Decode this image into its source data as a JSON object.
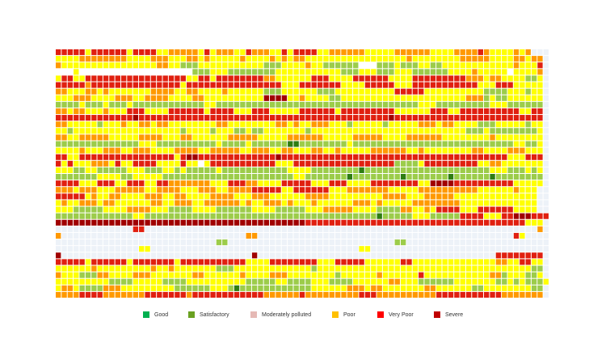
{
  "colors": {
    "good": "#00b050",
    "satisfactory": "#6aa121",
    "moderate": "#e5b9b5",
    "poor": "#ffc000",
    "very_poor": "#ff0000",
    "severe": "#c00000",
    "empty": "#eaf1f8"
  },
  "legend": [
    {
      "key": "good",
      "label": "Good",
      "color": "#00b050"
    },
    {
      "key": "satisfactory",
      "label": "Satisfactory",
      "color": "#6aa121"
    },
    {
      "key": "moderate",
      "label": "Moderately polluted",
      "color": "#e5b9b5"
    },
    {
      "key": "poor",
      "label": "Poor",
      "color": "#ffc000"
    },
    {
      "key": "very_poor",
      "label": "Very Poor",
      "color": "#ff0000"
    },
    {
      "key": "severe",
      "label": "Severe",
      "color": "#c00000"
    }
  ],
  "chart_data": {
    "type": "heatmap",
    "legend_position": "bottom",
    "palette": {
      "G": "#2e7d12",
      "S": "#9ccc4a",
      "Y": "#ffff00",
      "O": "#ff9900",
      "R": "#e02010",
      "D": "#a00000",
      "W": "#ffffff",
      "E": "#edf2f8"
    },
    "rows": [
      "RRRRRYRRRRRRYRRRRYYOOOOOYRYOOOYYROOOYYRYRRRRYYOOOOOOYYYYYOOOOOOYYYYOOOOROYYYYOYO",
      "YYYYOOOOOOOOYYYYOOOYYYOOYOYYYYYOYYYYOYOYOOYYYYYYYYYYYYYYYYYOYYYYYYYYOOOOOYYYYOOYOO",
      "OYYYYYYYYYYYYYYYYOOYYSSSYYYYYYYYYYYSSSYYYYOYYSSSSSSWWWSSSYSSSYYSSYYYYYYYYYYYYOYYYR",
      "WWWYWWWWWWWWWWWWWWWWWWWSSSYYYSSSSSSSSYYYYYYYYYYYSSSYYYSSSYYYSSSSSSYYYYOYYYYYWYYYYO",
      "YRRYYRRRRRRRRRRRRRRRRRYYRRYRRRRRRRROOYYYYYYRRRYYYYRRRRRRYYYYRRRRRRRRROOOYOOYYYYSSY",
      "RRRRRORRRRRRRRRRRRRRRYRRRRRRRRRRRRRRRRYYYRRRRRRRYYYYRRRRRYYYRRRRRRRRRRRYYYRRRYYYYY",
      "OOYYYOOYOYYYYYYYOOOOYYOOYYYYOYYYYYYSSSYYYYYYSSSYYYYYYYYYYRRRRRYYYYYYYYYYSSSSYYYSYY",
      "YYYOOOYYYYOOOYYOOOOYYYYOOYYYYYYYYYYDDDDYYOYYYYSSYYYYYYYYYYYYYYYYYYYYYOOOSYSSYYYYYY",
      "SSSSYSSSYSSSYSSSSSSSSSSSSYYSSSSSSSSSSSSSSSSSSSSSSSSSSSSSSSSSSYYYSSSSSSSSSYYYSSSSSS",
      "OOYOOYYYOYYYRRRYYYYRRRRRRYRRRRYYYRRRYYYYYRRRRRRYRRRRRRRRRYYYYYYRRRYYRRRRRRRRRRYYRR",
      "RRRRRRRRRRRRRDRRRRRRRRRRRRRRRRRRRRRRRRRRRRRRRRRRRRRRRRRRDRRRRRRRRRRRRRRRRRRRRRRRRR",
      "OOYYYYYSYYYOYYOOYOOYYYYYYYYOOYYYYYYYYOOYOYYOOOYYYSYYYYYSYYYYYOOOYOOYYYYSSSYYYYYSYY",
      "YYSYYYYYYYYYYYYYYYYYYSYYYYSYYYSSYSSYYYYYYYSYYYYYYYYYYYYYYYYYYYYYYYYYYSSSYSSSSSSSSY",
      "OOYYOOOOOYYYYYOOOOYYYOOYYYYYYOOOOOYYYYYOOOOOOYYYYYOOOOOYYYYOOOOOOYYYYYYYYOYYYYYYYY",
      "SSSSSSSSSSSSSSYYYSSSSSSSSSSYSSSSYSSSSSSGGSSSSSSSSYSSSSSSSSSSSSSSSSSSSSSSSSSSSYYSSY",
      "YYYYOYYYOOOYYOOOYYYYOOOOYYOOOOOYYOOOYYOOYYYOOYYOYYYYYOOOOOOYYOYYYYYYYYOOYYYYOOOYYY",
      "RRYYRRRRRRRRRRRRRRRRYRDDRRRRRRRRRRRRRDRRRRRRRRRRRRRRRRRRRRRRRRRRRRRRRRRRRRRRYYYRRR",
      "RYRYYYOOOYRYYRRRRYYYYRYYWYRRRRRRRRRRRYYYRRRRRRRRRRRRRRRRRSSSSYRRRRRRRRRYYOOYYYYYYY",
      "YYYSSYYSSSSSYYYSSSYYSYSSSSSYSSSSSSSSSSSYYYYSSSSSSSSGSSSSSSSSSSSSSSSSSSSSSYYYSSSYSY",
      "SSSSSSSYYYYSSYYYYYSSSSSSSSSSSSSSSSSSSSSSYYSSSSSSSGSSSSSSSSGSSSSSSSGSSSSSSGSSSSSSSS",
      "RRRRYYYRRRYYRRRYYRROOOOOOOYYYRRROOYYYYRRRRRYYYRRRYYYYRRRRRRRRYYDDDDRRRRRRRRRRYYYYY",
      "OOOYOOOYYYOOOOOYYOOOOYYYOOOYYOOOORRRRRYYRRRRRRYYYOOOOOOOYYYYYOOOOOOOOOOYYYYYYOYYY",
      "RRRRRYOYYOOYYYYOOOYYOOYYYYOOOOYYYOOOYYYYYYOOOOYYYYYYYYYOOOOYYYOOOOOYYYYYYYYYYYYYY",
      "YOYYOOOYOOYYYYYYOOYYOOOYYOOOOOOYOYYOOOYOYYYOYYYYYYOOOYOYYYYYOOOOOOOOYYYYYYYYYYYYY",
      "YYYSSSSSYYYYOOOOYYYSSSSYYYYSSSSSSYYYYSSSSSYYYOOOOOYYYYSSSSOOYYOYRRRRYYYRRRRRRYYYY",
      "SSSSSSSSSSSSSYYSSSSSSSSSSSSSSSSSSSSSSSSSSSSSSSSSSSSSSSGSSSSSYYYSSSSSRRRRYYYRRDDDRRR",
      "DDDDDDDDDDDDDDDDDDDDDDDDDDDDDDDDDDDDDDDDDDRRRRRRRRRRRRRRRRRRRRRRRRRRRRRRRRRRRRRYYY",
      "EEEEEEEEEEEEERREEEEEEEEEEEEEEEEEEEEEEEEEEEEEEEEEEEEEEEEEEEEEEEEEEEEEEEEEEEEEEEEEEO",
      "OEEEEEEEEEEEEEEEEEEEEEEEEEEEEEEEOOEEEEEEEEEEEEEEEEEEEEEEEEEEEEEEEEEEEEEEEEEEERYEEE",
      "EEEEEEEEEEEEEEEEEEEEEEEEEEESSEEEEEEEEEEEEEEEEEEEEEEEEEEEESSEEEEEEEEEEEEEEEEEEEEEEE",
      "EEEEEEEEEEEEEEYYEEEEEEEEEEEEEEEEEEEEEEEEEEEEEEEEEEEYYEEEEEEEEEEEEEEEEEEEEEEEEEEEEE",
      "DEEEEEEEEEEEEEEEEEEEEEEEEEEEEEEEEDEEEEEEEEEEEEEEEEEEEEEEEEEEEEEEEEEEEEEEEERRRRRRRR",
      "RRRRRYRRRRRRYRRRRRRRYRRRRRRRRRRRYYYYRRRRRRRRYYYRRRRRYYYYYYRRYYYYYYYYYYYYYYOOYYRRYY",
      "YYYYYYOYYYYYYYYYOYYOYYYYYYYSSSYYYYYYYYYYYYYSYYYYYYYYYYYYYYYYYYYYYYYYYYYYYYYYYYYYSS",
      "OYYYSSSOOYYYYOOOYYYYYYYOOYYYYYYOYYYYOOOYYYYYYYYSYYYYYYOYYYYYYRYYYYYYYYYYYOOSYYYSSY",
      "YYYYYYYYYSSSSYYYYYSSSSYYYYYYYYYYSSSSSYYSSSSYYYSSSSYYYYYYOOYYYSSSSSSYYYYYYYSSYSYSSSY",
      "YOOYSSSSOOOYYYYYYYYYSSSSSSYYYSGSSSSSSSSSSSSYYYYYYOOOYOOYYYYYYYOOYYYYYYSSYYYYYYYYSS",
      "OOOORRRROOOOOOORRRRRRRORRRRRRRRRRRROOOOOOROOOOOOOOORRROOOOOOOOOORRRRRRRRRRROOOOOOO"
    ]
  }
}
